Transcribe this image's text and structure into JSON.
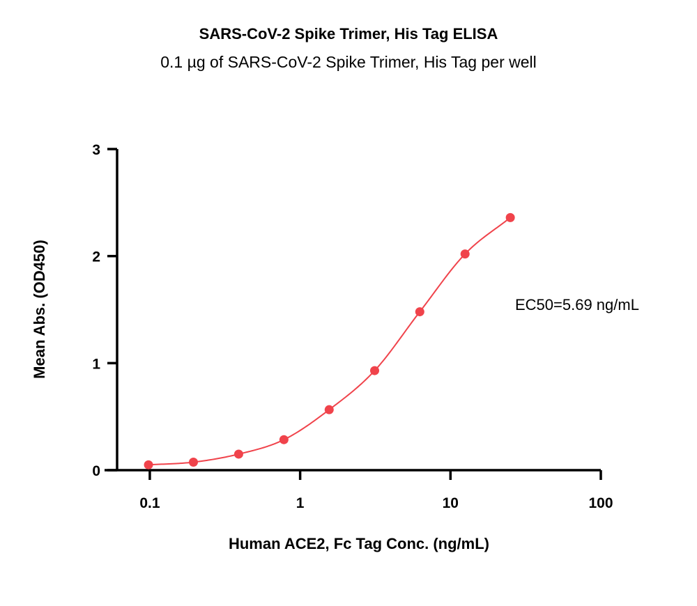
{
  "chart_data": {
    "type": "scatter",
    "title": "SARS-CoV-2 Spike Trimer, His Tag  ELISA",
    "subtitle": "0.1 µg of SARS-CoV-2 Spike Trimer, His Tag  per well",
    "xlabel": "Human ACE2, Fc Tag Conc. (ng/mL)",
    "ylabel": "Mean Abs. (OD450)",
    "x_scale": "log",
    "xlim": [
      0.05,
      100
    ],
    "ylim": [
      0,
      3
    ],
    "x_ticks": [
      0.1,
      1,
      10,
      100
    ],
    "x_tick_labels": [
      "0.1",
      "1",
      "10",
      "100"
    ],
    "y_ticks": [
      0,
      1,
      2,
      3
    ],
    "y_tick_labels": [
      "0",
      "1",
      "2",
      "3"
    ],
    "grid": false,
    "series": [
      {
        "color": "#f0434b",
        "x": [
          0.098,
          0.195,
          0.39,
          0.78,
          1.56,
          3.13,
          6.25,
          12.5,
          25
        ],
        "y": [
          0.05,
          0.075,
          0.15,
          0.285,
          0.565,
          0.93,
          1.48,
          2.02,
          2.36
        ]
      }
    ],
    "annotations": [
      {
        "text": "EC50=5.69 ng/mL"
      }
    ]
  }
}
